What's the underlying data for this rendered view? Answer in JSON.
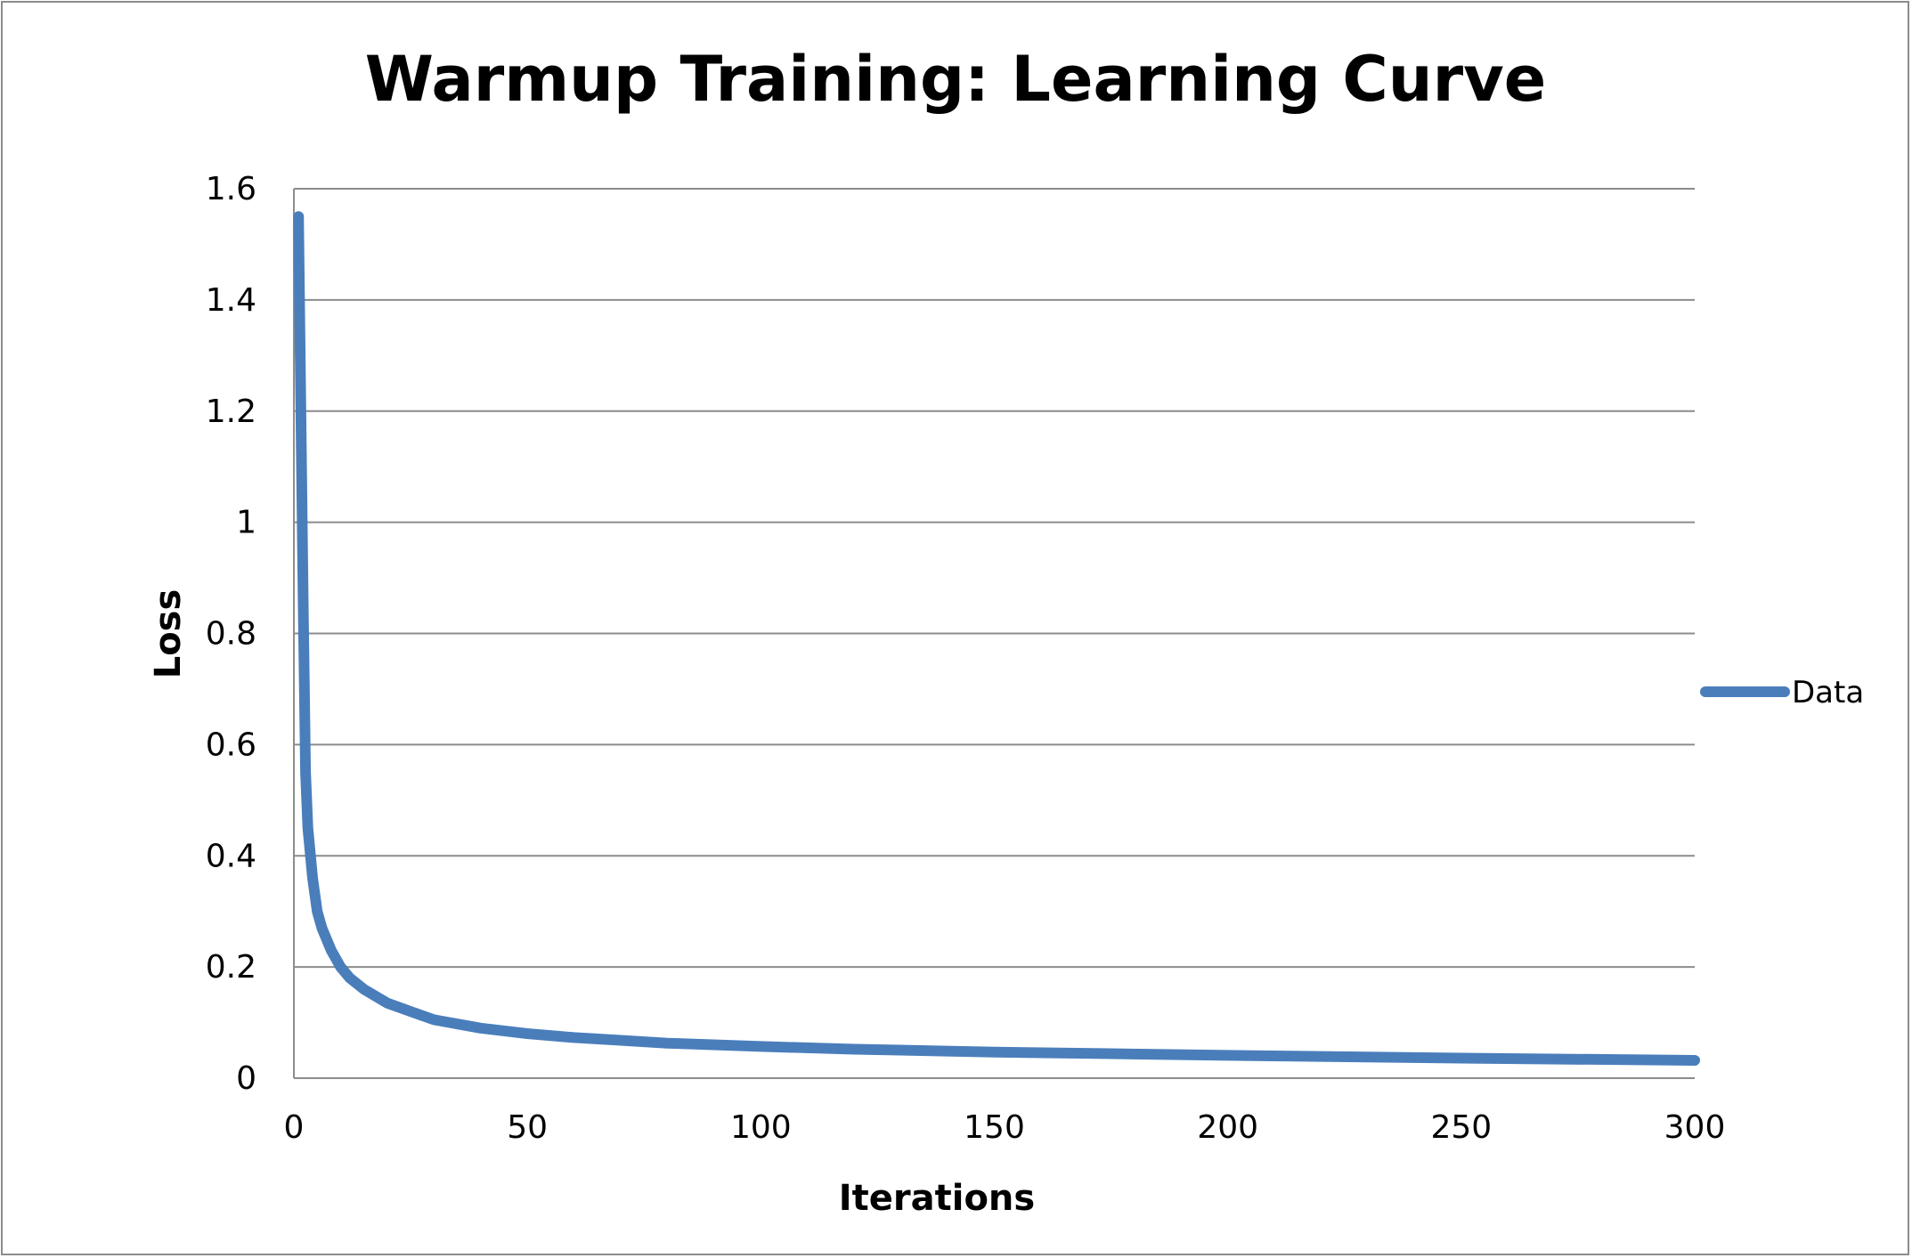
{
  "chart_data": {
    "type": "line",
    "title": "Warmup Training: Learning Curve",
    "xlabel": "Iterations",
    "ylabel": "Loss",
    "xlim": [
      0,
      300
    ],
    "ylim": [
      0,
      1.6
    ],
    "x_ticks": [
      "0",
      "50",
      "100",
      "150",
      "200",
      "250",
      "300"
    ],
    "y_ticks": [
      "0",
      "0.2",
      "0.4",
      "0.6",
      "0.8",
      "1",
      "1.2",
      "1.4",
      "1.6"
    ],
    "grid": "horizontal",
    "legend_position": "right",
    "series": [
      {
        "name": "Data",
        "color": "#4a7ebb",
        "x": [
          1,
          2,
          2.5,
          3,
          4,
          5,
          6,
          8,
          10,
          12,
          15,
          20,
          25,
          30,
          40,
          50,
          60,
          70,
          80,
          100,
          120,
          150,
          175,
          200,
          250,
          300
        ],
        "y": [
          1.55,
          0.85,
          0.55,
          0.45,
          0.36,
          0.3,
          0.27,
          0.23,
          0.2,
          0.18,
          0.16,
          0.135,
          0.12,
          0.105,
          0.09,
          0.08,
          0.073,
          0.068,
          0.063,
          0.057,
          0.052,
          0.047,
          0.044,
          0.041,
          0.036,
          0.032
        ]
      }
    ]
  }
}
